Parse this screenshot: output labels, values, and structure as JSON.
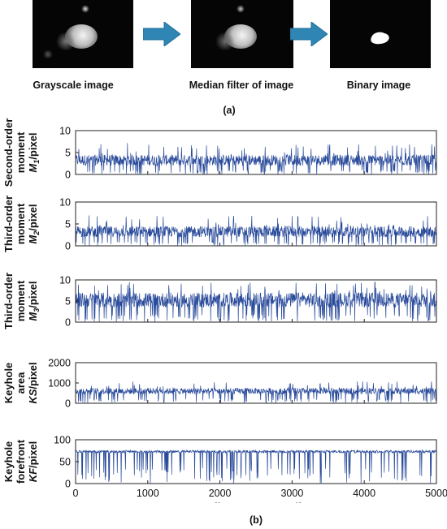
{
  "top_row": {
    "captions": [
      "Grayscale image",
      "Median filter of image",
      "Binary image"
    ],
    "label": "(a)"
  },
  "bottom": {
    "label": "(b)",
    "xlabel_pre": "Sampling sequence ",
    "xlabel_var": "n",
    "xlabel_post": "/frame",
    "xticks": [
      "0",
      "1000",
      "2000",
      "3000",
      "4000",
      "5000"
    ]
  },
  "chart_data": [
    {
      "type": "line",
      "series": [
        {
          "name": "",
          "band": [
            2.0,
            4.5
          ],
          "spike_max": 7.2,
          "min": 0
        }
      ],
      "ylabel": [
        "Second-order",
        "moment",
        "M1/pixel"
      ],
      "yticks": [
        "0",
        "5",
        "10"
      ],
      "ylim": [
        0,
        10
      ],
      "xlim": [
        0,
        5000
      ]
    },
    {
      "type": "line",
      "series": [
        {
          "name": "",
          "band": [
            2.0,
            4.5
          ],
          "spike_max": 7.0,
          "min": 0
        }
      ],
      "ylabel": [
        "Third-order",
        "moment",
        "M2/pixel"
      ],
      "yticks": [
        "0",
        "5",
        "10"
      ],
      "ylim": [
        0,
        10
      ],
      "xlim": [
        0,
        5000
      ]
    },
    {
      "type": "line",
      "series": [
        {
          "name": "",
          "band": [
            3.5,
            7.0
          ],
          "spike_max": 9.5,
          "min": 0
        }
      ],
      "ylabel": [
        "Third-order",
        "moment",
        "M3/pixel"
      ],
      "yticks": [
        "0",
        "5",
        "10"
      ],
      "ylim": [
        0,
        10
      ],
      "xlim": [
        0,
        5000
      ]
    },
    {
      "type": "line",
      "series": [
        {
          "name": "",
          "band": [
            450,
            750
          ],
          "spike_max": 1100,
          "min": 0
        }
      ],
      "ylabel": [
        "Keyhole",
        "area",
        "KS/pixel"
      ],
      "yticks": [
        "0",
        "1000",
        "2000"
      ],
      "ylim": [
        0,
        2000
      ],
      "xlim": [
        0,
        5000
      ]
    },
    {
      "type": "line",
      "series": [
        {
          "name": "",
          "band": [
            70,
            76
          ],
          "spike_max": 78,
          "min": 0
        }
      ],
      "ylabel": [
        "Keyhole",
        "forefront",
        "KF/pixel"
      ],
      "yticks": [
        "0",
        "50",
        "100"
      ],
      "ylim": [
        0,
        100
      ],
      "xlim": [
        0,
        5000
      ]
    }
  ],
  "colors": {
    "series": "#2a4b9b",
    "arrow_fill": "#2f86b5",
    "arrow_edge": "#1e6d97"
  }
}
